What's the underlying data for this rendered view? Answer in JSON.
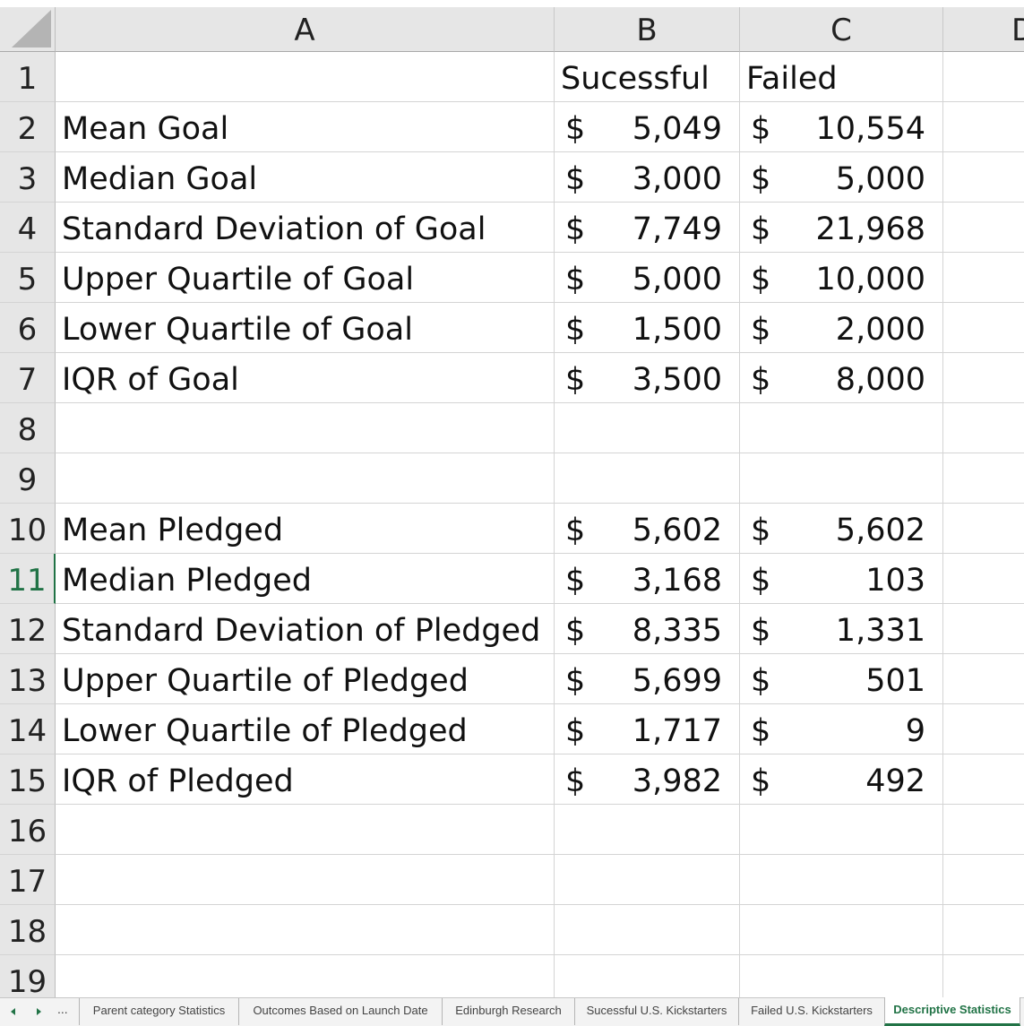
{
  "columns": [
    "A",
    "B",
    "C",
    "D"
  ],
  "rows": [
    "1",
    "2",
    "3",
    "4",
    "5",
    "6",
    "7",
    "8",
    "9",
    "10",
    "11",
    "12",
    "13",
    "14",
    "15",
    "16",
    "17",
    "18",
    "19"
  ],
  "active_row": "11",
  "header": {
    "b": "Sucessful",
    "c": "Failed"
  },
  "currency_symbol": "$",
  "stats": [
    {
      "row": "2",
      "label": "Mean Goal",
      "successful": "5,049",
      "failed": "10,554"
    },
    {
      "row": "3",
      "label": "Median Goal",
      "successful": "3,000",
      "failed": "5,000"
    },
    {
      "row": "4",
      "label": "Standard Deviation of Goal",
      "successful": "7,749",
      "failed": "21,968"
    },
    {
      "row": "5",
      "label": "Upper Quartile of Goal",
      "successful": "5,000",
      "failed": "10,000"
    },
    {
      "row": "6",
      "label": "Lower Quartile of Goal",
      "successful": "1,500",
      "failed": "2,000"
    },
    {
      "row": "7",
      "label": "IQR of Goal",
      "successful": "3,500",
      "failed": "8,000"
    },
    {
      "row": "10",
      "label": "Mean Pledged",
      "successful": "5,602",
      "failed": "5,602"
    },
    {
      "row": "11",
      "label": "Median Pledged",
      "successful": "3,168",
      "failed": "103"
    },
    {
      "row": "12",
      "label": "Standard Deviation of Pledged",
      "successful": "8,335",
      "failed": "1,331"
    },
    {
      "row": "13",
      "label": "Upper Quartile of Pledged",
      "successful": "5,699",
      "failed": "501"
    },
    {
      "row": "14",
      "label": "Lower Quartile of Pledged",
      "successful": "1,717",
      "failed": "9"
    },
    {
      "row": "15",
      "label": "IQR of Pledged",
      "successful": "3,982",
      "failed": "492"
    }
  ],
  "tabs": {
    "more": "...",
    "items": [
      "Parent category Statistics",
      "Outcomes Based on Launch Date",
      "Edinburgh Research",
      "Sucessful U.S. Kickstarters",
      "Failed U.S. Kickstarters",
      "Descriptive Statistics"
    ],
    "active": "Descriptive Statistics"
  },
  "colors": {
    "accent": "#217346",
    "header_bg": "#e6e6e6",
    "grid": "#d4d4d4"
  }
}
